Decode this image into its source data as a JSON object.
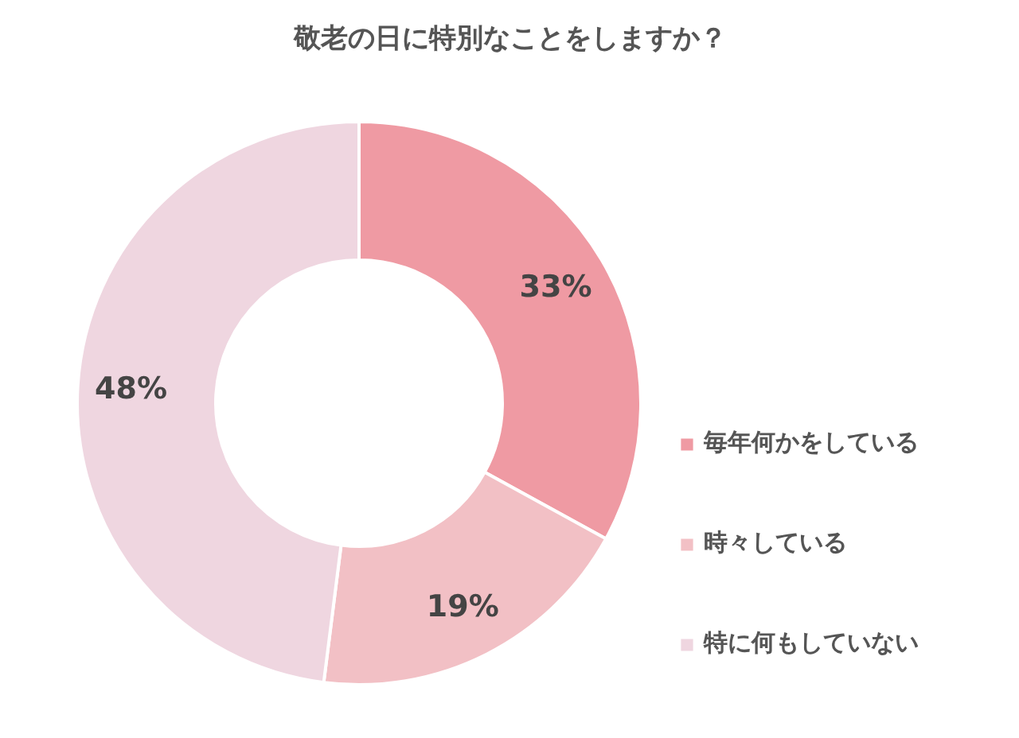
{
  "chart_data": {
    "type": "donut",
    "title": "敬老の日に特別なことをしますか？",
    "categories": [
      "毎年何かをしている",
      "時々している",
      "特に何もしていない"
    ],
    "values": [
      33,
      19,
      48
    ],
    "colors": [
      "#ef9aa3",
      "#f2c0c5",
      "#efd6e0"
    ],
    "value_labels": [
      "33%",
      "19%",
      "48%"
    ],
    "legend": "right"
  }
}
